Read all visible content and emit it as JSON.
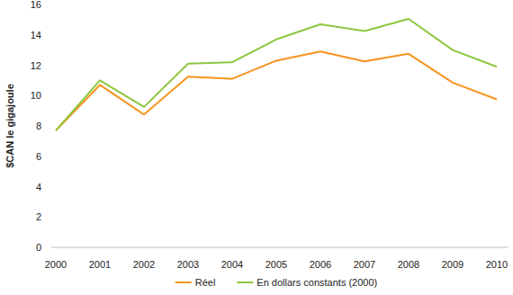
{
  "chart_data": {
    "type": "line",
    "y_label": "$CAN le gigajoule",
    "categories": [
      "2000",
      "2001",
      "2002",
      "2003",
      "2004",
      "2005",
      "2006",
      "2007",
      "2008",
      "2009",
      "2010"
    ],
    "series": [
      {
        "name": "Réel",
        "color": "#f7941d",
        "values": [
          7.7,
          10.7,
          8.75,
          11.25,
          11.1,
          12.3,
          12.9,
          12.25,
          12.75,
          10.85,
          9.75
        ]
      },
      {
        "name": "En dollars constants (2000)",
        "color": "#8dc63f",
        "values": [
          7.7,
          11.0,
          9.25,
          12.1,
          12.2,
          13.7,
          14.7,
          14.25,
          15.05,
          13.0,
          11.9
        ]
      }
    ],
    "ylim": [
      0,
      16
    ],
    "yticks": [
      0,
      2,
      4,
      6,
      8,
      10,
      12,
      14,
      16
    ],
    "grid": false,
    "legend": "bottom"
  }
}
